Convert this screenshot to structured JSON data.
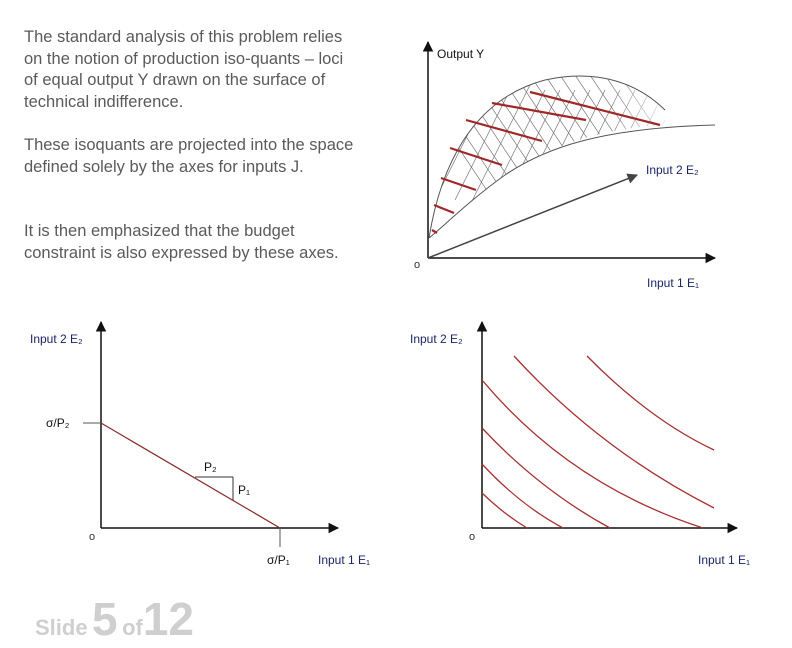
{
  "text": {
    "paragraph1": "The standard analysis of this problem relies on the notion of production iso-quants – loci of equal output Y drawn on the surface of technical indifference.",
    "paragraph2": "These isoquants are projected into the space defined solely by the axes for inputs J.",
    "paragraph3": "It is then emphasized that the budget constraint is also expressed by these axes."
  },
  "diagram3d": {
    "y_axis_label": "Output Y",
    "x_axis_label": "Input 1 E₁",
    "z_axis_label": "Input 2 E₂",
    "origin_label": "o"
  },
  "budget_diagram": {
    "y_axis_label": "Input 2 E₂",
    "x_axis_label": "Input 1 E₁",
    "y_intercept_label": "σ/P₂",
    "x_intercept_label": "σ/P₁",
    "run_label": "P₂",
    "rise_label": "P₁",
    "origin_label": "o"
  },
  "isoquant_map": {
    "y_axis_label": "Input 2 E₂",
    "x_axis_label": "Input 1 E₁",
    "origin_label": "o"
  },
  "footer": {
    "slide_word": "Slide",
    "slide_number": "5",
    "of_word": "of",
    "total": "12"
  },
  "colors": {
    "isoquant": "#a83232",
    "text": "#5a5a5a",
    "axis_label": "#1a2466"
  }
}
